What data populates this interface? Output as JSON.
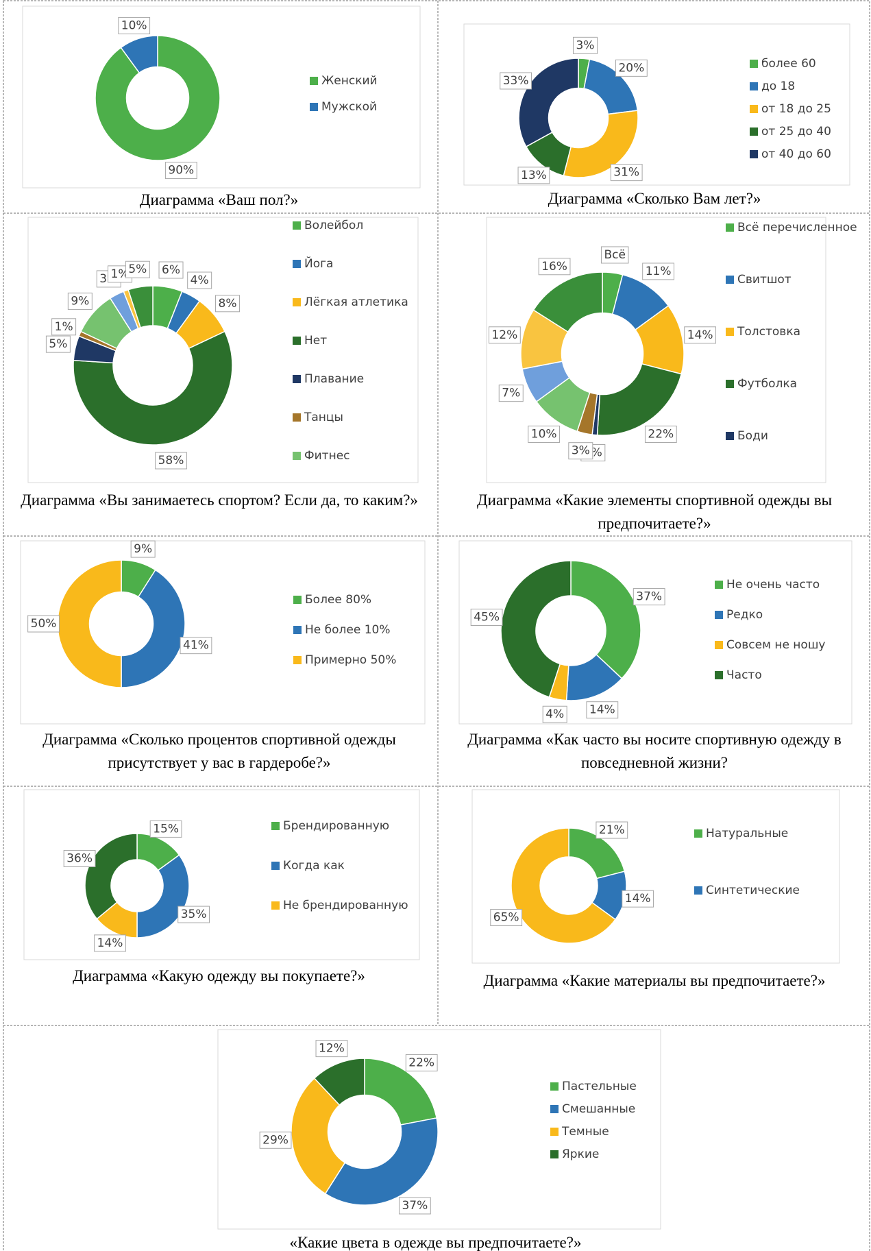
{
  "chart_data": [
    {
      "type": "donut",
      "title": "Диаграмма «Ваш пол?»",
      "categories": [
        "Женский",
        "Мужской"
      ],
      "values": [
        90,
        10
      ],
      "value_labels": [
        "90%",
        "10%"
      ],
      "colors": [
        "#4daf4a",
        "#2e75b6"
      ]
    },
    {
      "type": "donut",
      "title": "Диаграмма «Сколько Вам лет?»",
      "categories": [
        "более 60",
        "до 18",
        "от 18 до 25",
        "от 25 до 40",
        "от 40 до 60"
      ],
      "values": [
        3,
        20,
        31,
        13,
        33
      ],
      "value_labels": [
        "3%",
        "20%",
        "31%",
        "13%",
        "33%"
      ],
      "colors": [
        "#4daf4a",
        "#2e75b6",
        "#f9b91b",
        "#2b6f2b",
        "#1f3864"
      ]
    },
    {
      "type": "donut",
      "title": "Диаграмма «Вы занимаетесь спортом? Если да, то каким?»",
      "categories": [
        "Волейбол",
        "Йога",
        "Лёгкая атлетика",
        "Нет",
        "Плавание",
        "Танцы",
        "Фитнес",
        null,
        null,
        null
      ],
      "values": [
        6,
        4,
        8,
        58,
        5,
        1,
        9,
        3,
        1,
        5
      ],
      "value_labels": [
        "6%",
        "4%",
        "8%",
        "58%",
        "5%",
        "1%",
        "9%",
        "3%",
        "1%",
        "5%"
      ],
      "colors": [
        "#4daf4a",
        "#2e75b6",
        "#f9b91b",
        "#2b6f2b",
        "#1f3864",
        "#a5762a",
        "#76c26f",
        "#6f9fdc",
        "#f9c440",
        "#3a8f3a"
      ]
    },
    {
      "type": "donut",
      "title": "Диаграмма «Какие элементы спортивной одежды вы предпочитаете?»",
      "categories": [
        "Всё перечисленное",
        "Свитшот",
        "Толстовка",
        "Футболка",
        "Боди",
        null,
        null,
        null,
        null,
        null
      ],
      "values": [
        4,
        11,
        14,
        22,
        1,
        3,
        10,
        7,
        12,
        16
      ],
      "value_labels": [
        "Всё",
        "11%",
        "14%",
        "22%",
        "1%",
        "3%",
        "10%",
        "7%",
        "12%",
        "16%"
      ],
      "colors": [
        "#4daf4a",
        "#2e75b6",
        "#f9b91b",
        "#2b6f2b",
        "#1f3864",
        "#a5762a",
        "#76c26f",
        "#6f9fdc",
        "#f9c440",
        "#3a8f3a"
      ]
    },
    {
      "type": "donut",
      "title": "Диаграмма «Сколько процентов спортивной одежды присутствует у вас в гардеробе?»",
      "categories": [
        "Более 80%",
        "Не более 10%",
        "Примерно 50%"
      ],
      "values": [
        9,
        41,
        50
      ],
      "value_labels": [
        "9%",
        "41%",
        "50%"
      ],
      "colors": [
        "#4daf4a",
        "#2e75b6",
        "#f9b91b"
      ]
    },
    {
      "type": "donut",
      "title": "Диаграмма «Как часто вы носите спортивную одежду в повседневной жизни?",
      "categories": [
        "Не очень часто",
        "Редко",
        "Совсем не ношу",
        "Часто"
      ],
      "values": [
        37,
        14,
        4,
        45
      ],
      "value_labels": [
        "37%",
        "14%",
        "4%",
        "45%"
      ],
      "colors": [
        "#4daf4a",
        "#2e75b6",
        "#f9b91b",
        "#2b6f2b"
      ]
    },
    {
      "type": "donut",
      "title": "Диаграмма «Какую одежду вы покупаете?»",
      "categories": [
        "Брендированную",
        "Когда как",
        "Не брендированную",
        null
      ],
      "values": [
        15,
        35,
        14,
        36
      ],
      "value_labels": [
        "15%",
        "35%",
        "14%",
        "36%"
      ],
      "colors": [
        "#4daf4a",
        "#2e75b6",
        "#f9b91b",
        "#2b6f2b"
      ]
    },
    {
      "type": "donut",
      "title": "Диаграмма «Какие материалы вы предпочитаете?»",
      "categories": [
        "Натуральные",
        "Синтетические",
        null
      ],
      "values": [
        21,
        14,
        65
      ],
      "value_labels": [
        "21%",
        "14%",
        "65%"
      ],
      "colors": [
        "#4daf4a",
        "#2e75b6",
        "#f9b91b"
      ]
    },
    {
      "type": "donut",
      "title": "«Какие цвета в одежде вы предпочитаете?»",
      "categories": [
        "Пастельные",
        "Смешанные",
        "Темные",
        "Яркие"
      ],
      "values": [
        22,
        37,
        29,
        12
      ],
      "value_labels": [
        "22%",
        "37%",
        "29%",
        "12%"
      ],
      "colors": [
        "#4daf4a",
        "#2e75b6",
        "#f9b91b",
        "#2b6f2b"
      ]
    }
  ]
}
